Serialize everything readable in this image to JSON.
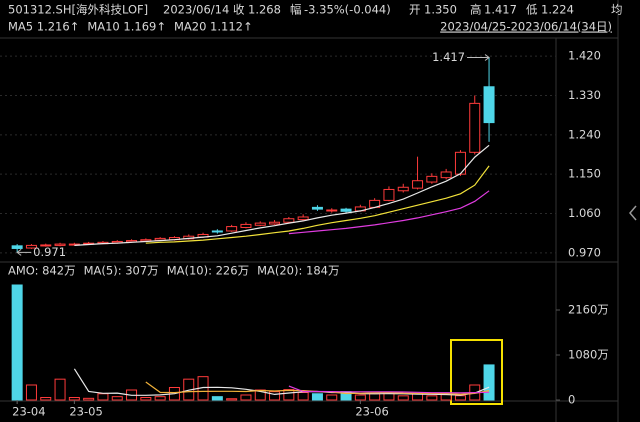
{
  "header": {
    "title": "501312.SH[海外科技LOF]",
    "date": "2023/06/14",
    "items": [
      {
        "label": "收",
        "value": "1.268",
        "color": "#3ddc5c"
      },
      {
        "label": "幅",
        "value": "-3.35%(-0.044)",
        "color": "#3ddc5c"
      },
      {
        "label": "开",
        "value": "1.350",
        "color": "#ff4040"
      },
      {
        "label": "高",
        "value": "1.417",
        "color": "#ff4040"
      },
      {
        "label": "低",
        "value": "1.224",
        "color": "#3ddc5c"
      }
    ],
    "tail": "均"
  },
  "chart_data": [
    {
      "type": "candlestick",
      "range_label": "2023/04/25-2023/06/14(34日)",
      "up_color": "#ff3b3b",
      "down_color": "#4fd6e8",
      "open": [
        0.986,
        0.981,
        0.986,
        0.987,
        0.989,
        0.99,
        0.991,
        0.993,
        0.995,
        0.997,
        0.999,
        1.0,
        1.002,
        1.006,
        1.02,
        1.02,
        1.028,
        1.033,
        1.036,
        1.04,
        1.046,
        1.074,
        1.066,
        1.07,
        1.066,
        1.074,
        1.09,
        1.112,
        1.118,
        1.132,
        1.142,
        1.15,
        1.2,
        1.35
      ],
      "high": [
        0.99,
        0.99,
        0.991,
        0.993,
        0.993,
        0.995,
        0.997,
        0.999,
        1.001,
        1.003,
        1.006,
        1.008,
        1.012,
        1.016,
        1.024,
        1.034,
        1.04,
        1.042,
        1.045,
        1.052,
        1.058,
        1.079,
        1.072,
        1.073,
        1.08,
        1.095,
        1.122,
        1.128,
        1.19,
        1.152,
        1.162,
        1.205,
        1.33,
        1.417
      ],
      "low": [
        0.971,
        0.979,
        0.984,
        0.985,
        0.987,
        0.988,
        0.99,
        0.991,
        0.993,
        0.995,
        0.997,
        0.998,
        1.0,
        1.004,
        1.014,
        1.018,
        1.026,
        1.031,
        1.034,
        1.038,
        1.044,
        1.066,
        1.062,
        1.061,
        1.064,
        1.072,
        1.088,
        1.108,
        1.115,
        1.128,
        1.138,
        1.146,
        1.195,
        1.224
      ],
      "close": [
        0.98,
        0.987,
        0.988,
        0.99,
        0.99,
        0.992,
        0.994,
        0.996,
        0.998,
        1.0,
        1.003,
        1.005,
        1.008,
        1.012,
        1.018,
        1.03,
        1.035,
        1.038,
        1.04,
        1.048,
        1.052,
        1.07,
        1.068,
        1.065,
        1.075,
        1.09,
        1.115,
        1.12,
        1.135,
        1.145,
        1.155,
        1.2,
        1.312,
        1.268
      ],
      "series": [
        {
          "name": "MA5 1.216↑",
          "color": "#e8e8e8",
          "values": [
            null,
            null,
            null,
            null,
            0.987,
            0.989,
            0.991,
            0.992,
            0.994,
            0.996,
            0.998,
            1.0,
            1.003,
            1.006,
            1.009,
            1.015,
            1.021,
            1.027,
            1.032,
            1.038,
            1.043,
            1.05,
            1.056,
            1.061,
            1.066,
            1.074,
            1.083,
            1.093,
            1.107,
            1.121,
            1.134,
            1.151,
            1.189,
            1.216
          ]
        },
        {
          "name": "MA10 1.169↑",
          "color": "#f2e23a",
          "values": [
            null,
            null,
            null,
            null,
            null,
            null,
            null,
            null,
            null,
            0.992,
            0.994,
            0.995,
            0.997,
            0.999,
            1.002,
            1.005,
            1.008,
            1.012,
            1.016,
            1.02,
            1.026,
            1.033,
            1.039,
            1.044,
            1.049,
            1.055,
            1.063,
            1.071,
            1.079,
            1.087,
            1.095,
            1.105,
            1.125,
            1.169
          ]
        },
        {
          "name": "MA20 1.112↑",
          "color": "#e03ce0",
          "values": [
            null,
            null,
            null,
            null,
            null,
            null,
            null,
            null,
            null,
            null,
            null,
            null,
            null,
            null,
            null,
            null,
            null,
            null,
            null,
            1.014,
            1.017,
            1.02,
            1.023,
            1.026,
            1.03,
            1.034,
            1.039,
            1.044,
            1.05,
            1.057,
            1.064,
            1.072,
            1.088,
            1.112
          ]
        }
      ],
      "ylim": [
        0.949,
        1.457
      ],
      "yticks": [
        {
          "value": 1.42,
          "label": "1.420"
        },
        {
          "value": 1.33,
          "label": "1.330"
        },
        {
          "value": 1.24,
          "label": "1.240"
        },
        {
          "value": 1.15,
          "label": "1.150"
        },
        {
          "value": 1.06,
          "label": "1.060"
        },
        {
          "value": 0.97,
          "label": "0.970"
        }
      ],
      "grid": true
    },
    {
      "type": "bar",
      "categories": [
        "23-04",
        null,
        null,
        null,
        "23-05",
        null,
        null,
        null,
        null,
        null,
        null,
        null,
        null,
        null,
        null,
        null,
        null,
        null,
        null,
        null,
        null,
        null,
        null,
        null,
        "23-06",
        null,
        null,
        null,
        null,
        null,
        null,
        null,
        null,
        null
      ],
      "series": [
        {
          "name": "AMO: 842万",
          "color": "#e8e8e8",
          "values": [
            2760,
            360,
            60,
            500,
            60,
            40,
            150,
            80,
            240,
            60,
            80,
            300,
            500,
            560,
            80,
            30,
            120,
            240,
            200,
            250,
            180,
            150,
            120,
            200,
            120,
            150,
            180,
            100,
            150,
            100,
            130,
            103,
            360,
            842
          ]
        },
        {
          "name": "MA(5): 307万",
          "color": "#e8e8e8",
          "values": [
            null,
            null,
            null,
            null,
            748,
            204,
            162,
            166,
            114,
            114,
            122,
            152,
            236,
            300,
            304,
            294,
            258,
            206,
            134,
            168,
            198,
            204,
            180,
            180,
            154,
            148,
            154,
            150,
            140,
            136,
            132,
            117,
            169,
            307
          ]
        },
        {
          "name": "MA(10): 226万",
          "color": "#f2b23a",
          "values": [
            null,
            null,
            null,
            null,
            null,
            null,
            null,
            null,
            null,
            431,
            183,
            177,
            201,
            207,
            209,
            208,
            205,
            229,
            217,
            231,
            226,
            205,
            193,
            157,
            161,
            173,
            179,
            165,
            160,
            158,
            155,
            135,
            159,
            226
          ]
        },
        {
          "name": "MA(20): 184万",
          "color": "#e03ce0",
          "values": [
            null,
            null,
            null,
            null,
            null,
            null,
            null,
            null,
            null,
            null,
            null,
            null,
            null,
            null,
            null,
            null,
            null,
            null,
            null,
            334,
            205,
            204,
            202,
            198,
            196,
            196,
            198,
            192,
            186,
            176,
            175,
            170,
            178,
            184
          ]
        }
      ],
      "ylim": [
        0,
        2880
      ],
      "yticks": [
        0,
        {
          "value": 1080,
          "label": "1080万"
        },
        {
          "value": 2160,
          "label": "2160万"
        }
      ]
    }
  ]
}
